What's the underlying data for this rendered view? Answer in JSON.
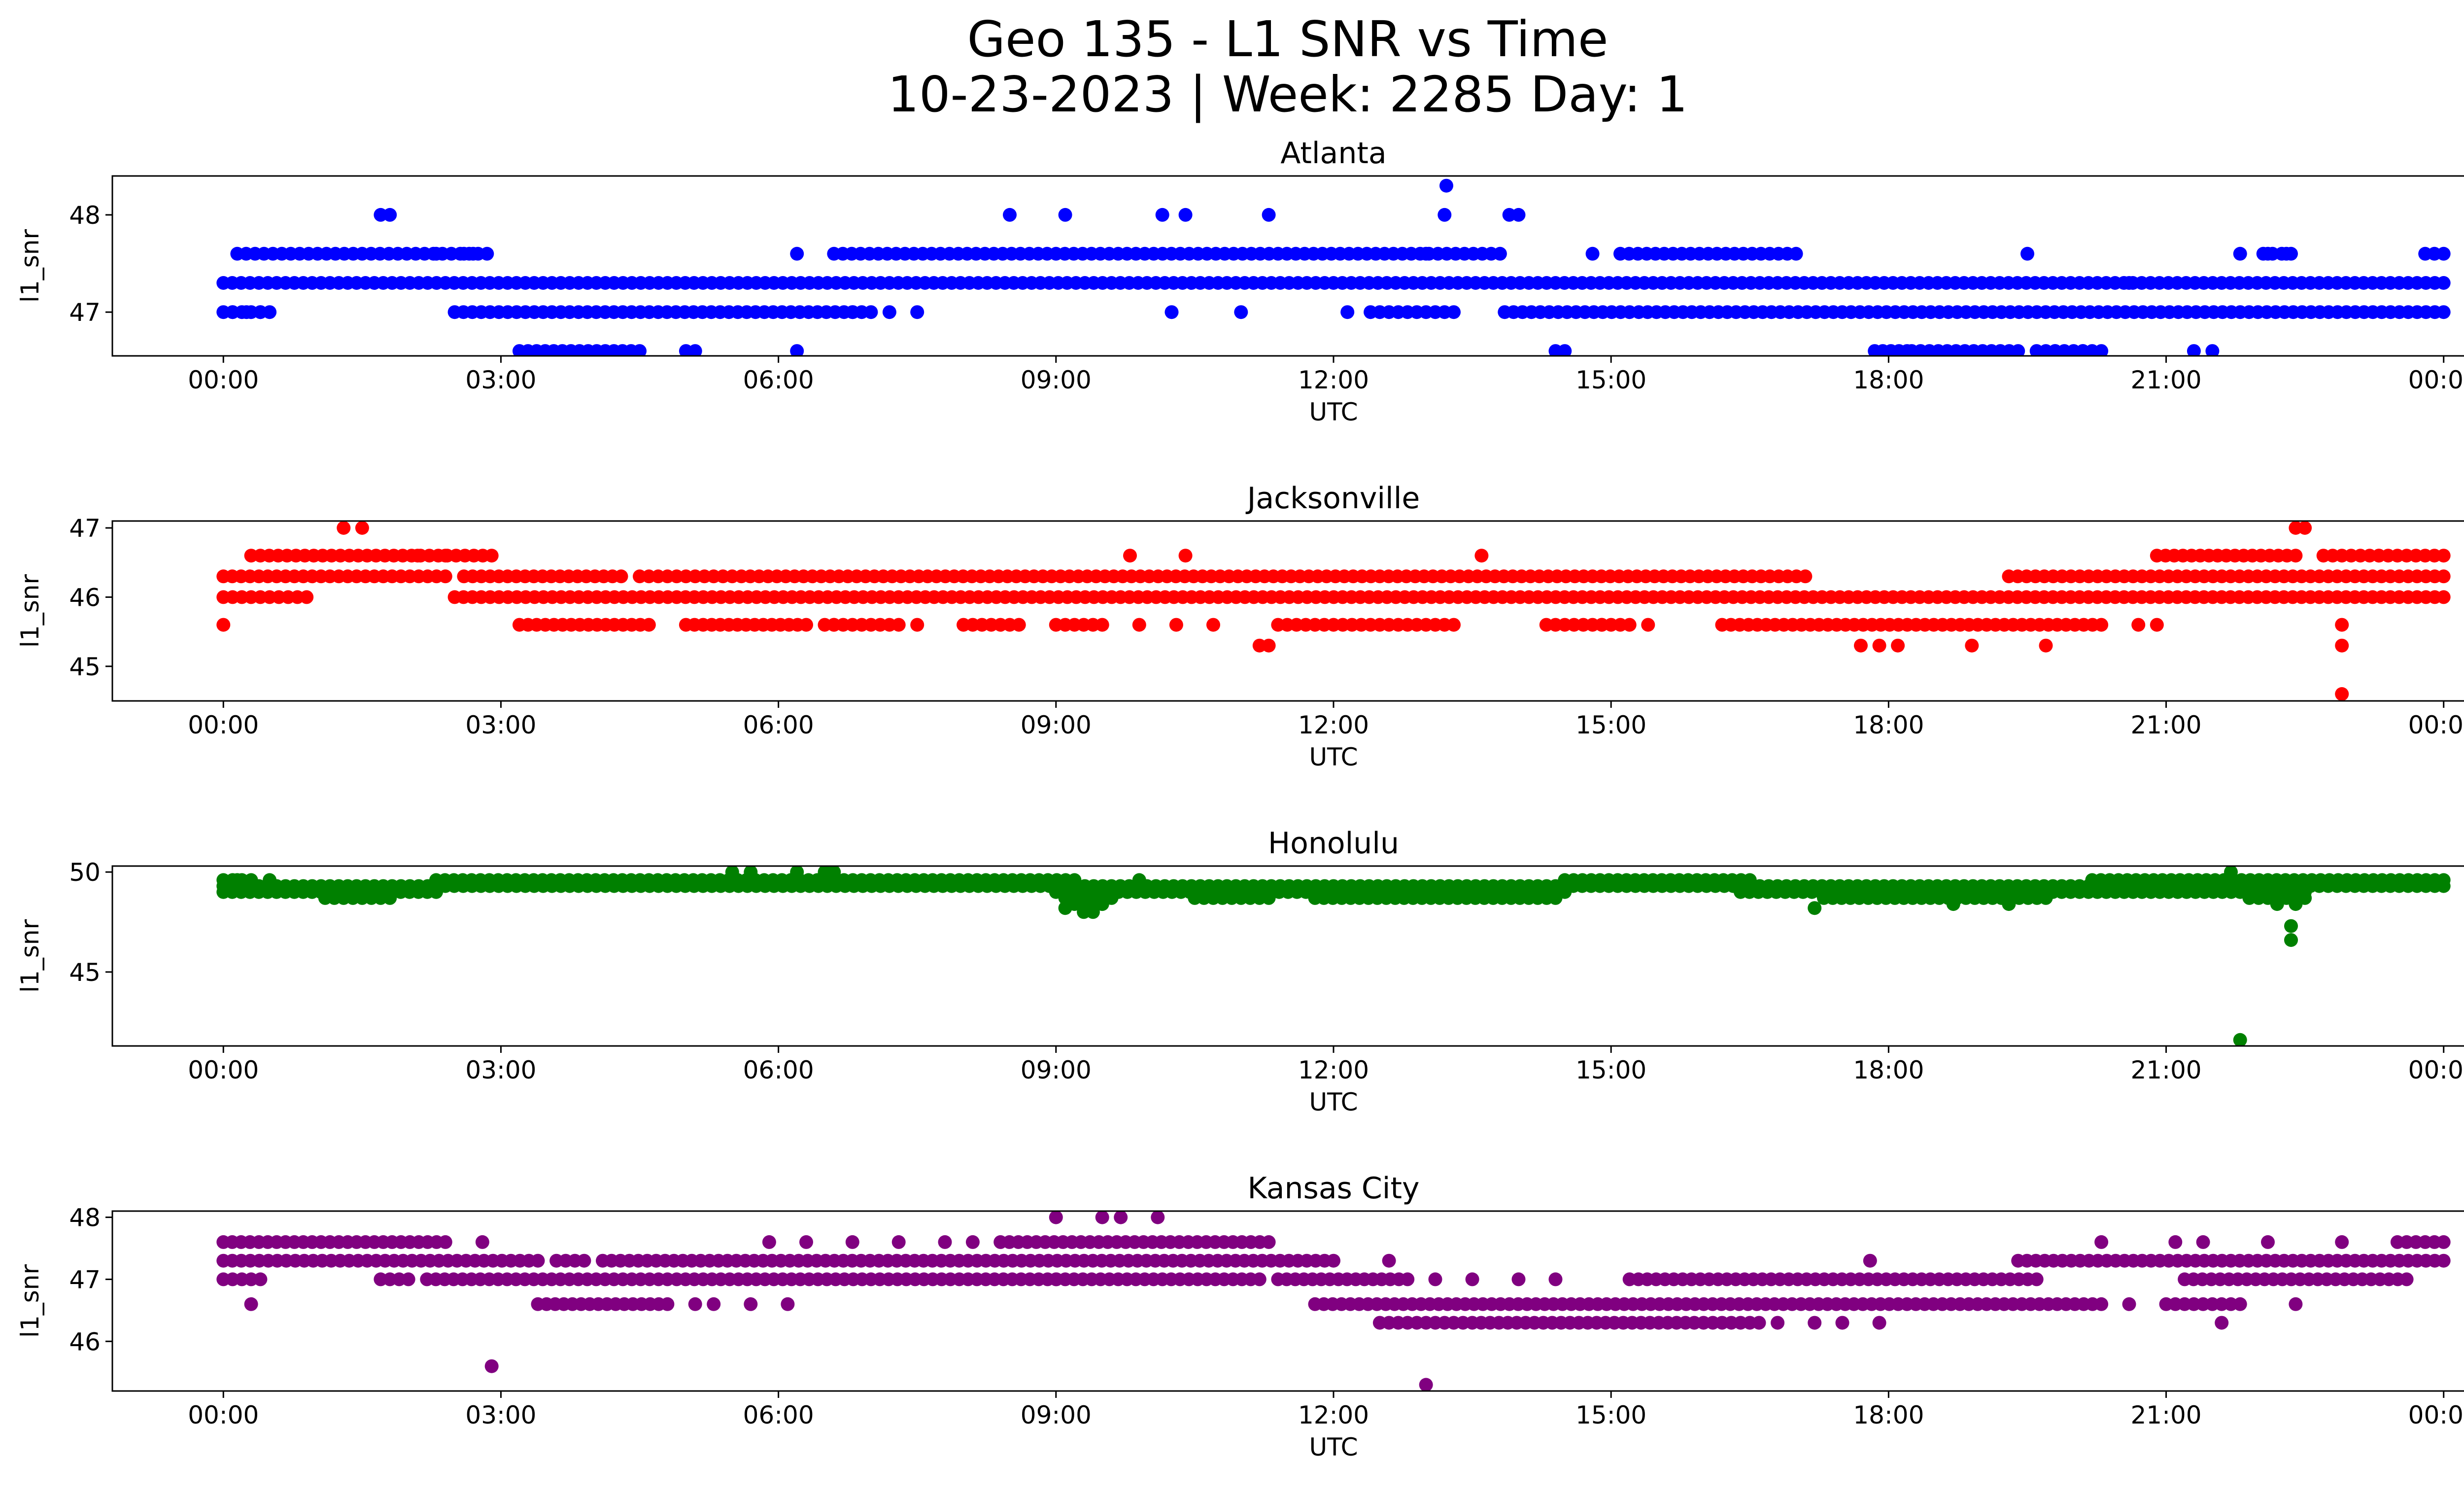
{
  "figure": {
    "title_line1": "Geo 135 - L1 SNR vs Time",
    "title_line2": "10-23-2023 | Week: 2285 Day: 1"
  },
  "chart_data": [
    {
      "type": "scatter",
      "title": "Atlanta",
      "xlabel": "UTC",
      "ylabel": "l1_snr",
      "color": "#0000ff",
      "x_unit": "hours UTC",
      "xlim": [
        -1.2,
        25.2
      ],
      "x_ticks": [
        0,
        3,
        6,
        9,
        12,
        15,
        18,
        21,
        24
      ],
      "x_tick_labels": [
        "00:00",
        "03:00",
        "06:00",
        "09:00",
        "12:00",
        "15:00",
        "18:00",
        "21:00",
        "00:00"
      ],
      "ylim": [
        46.55,
        48.4
      ],
      "y_ticks": [
        47,
        48
      ],
      "y_tick_labels": [
        "47",
        "48"
      ],
      "bands": [
        {
          "y": 47.3,
          "ranges": [
            [
              0.0,
              24.0
            ]
          ]
        },
        {
          "y": 47.0,
          "ranges": [
            [
              0.0,
              0.5
            ],
            [
              2.5,
              6.9
            ],
            [
              12.4,
              12.9
            ],
            [
              13.0,
              13.3
            ],
            [
              13.85,
              15.2
            ],
            [
              15.3,
              24.0
            ]
          ]
        },
        {
          "y": 47.6,
          "ranges": [
            [
              0.15,
              2.85
            ],
            [
              6.6,
              13.8
            ],
            [
              15.1,
              17.0
            ],
            [
              22.05,
              22.35
            ],
            [
              23.9,
              24.0
            ]
          ]
        },
        {
          "y": 46.6,
          "ranges": [
            [
              3.2,
              4.5
            ],
            [
              17.85,
              18.2
            ],
            [
              18.25,
              19.4
            ],
            [
              19.6,
              20.3
            ]
          ]
        }
      ],
      "points": [
        [
          0.1,
          47.0
        ],
        [
          0.25,
          47.0
        ],
        [
          0.4,
          47.0
        ],
        [
          1.7,
          48.0
        ],
        [
          1.8,
          48.0
        ],
        [
          2.3,
          47.6
        ],
        [
          2.6,
          47.6
        ],
        [
          2.7,
          47.6
        ],
        [
          6.2,
          47.6
        ],
        [
          6.2,
          46.6
        ],
        [
          6.8,
          47.0
        ],
        [
          7.0,
          47.0
        ],
        [
          7.2,
          47.0
        ],
        [
          7.5,
          47.0
        ],
        [
          8.5,
          48.0
        ],
        [
          9.1,
          48.0
        ],
        [
          10.15,
          48.0
        ],
        [
          10.25,
          47.0
        ],
        [
          10.4,
          48.0
        ],
        [
          11.0,
          47.0
        ],
        [
          11.3,
          48.0
        ],
        [
          12.15,
          47.0
        ],
        [
          13.0,
          47.6
        ],
        [
          13.2,
          48.0
        ],
        [
          13.22,
          48.3
        ],
        [
          13.9,
          48.0
        ],
        [
          14.0,
          48.0
        ],
        [
          14.4,
          46.6
        ],
        [
          14.5,
          46.6
        ],
        [
          14.8,
          47.6
        ],
        [
          5.0,
          46.6
        ],
        [
          5.1,
          46.6
        ],
        [
          19.5,
          47.6
        ],
        [
          19.8,
          46.6
        ],
        [
          20.1,
          46.6
        ],
        [
          20.6,
          47.3
        ],
        [
          21.3,
          46.6
        ],
        [
          21.5,
          46.6
        ],
        [
          21.8,
          47.6
        ],
        [
          22.1,
          47.6
        ],
        [
          22.3,
          47.6
        ],
        [
          23.8,
          47.6
        ]
      ]
    },
    {
      "type": "scatter",
      "title": "Jacksonville",
      "xlabel": "UTC",
      "ylabel": "l1_snr",
      "color": "#ff0000",
      "x_unit": "hours UTC",
      "xlim": [
        -1.2,
        25.2
      ],
      "x_ticks": [
        0,
        3,
        6,
        9,
        12,
        15,
        18,
        21,
        24
      ],
      "x_tick_labels": [
        "00:00",
        "03:00",
        "06:00",
        "09:00",
        "12:00",
        "15:00",
        "18:00",
        "21:00",
        "00:00"
      ],
      "ylim": [
        44.5,
        47.1
      ],
      "y_ticks": [
        45,
        46,
        47
      ],
      "y_tick_labels": [
        "45",
        "46",
        "47"
      ],
      "bands": [
        {
          "y": 46.3,
          "ranges": [
            [
              0.0,
              2.4
            ],
            [
              2.6,
              4.3
            ],
            [
              4.5,
              5.5
            ],
            [
              5.6,
              17.1
            ],
            [
              19.3,
              24.0
            ]
          ]
        },
        {
          "y": 46.0,
          "ranges": [
            [
              0.0,
              0.9
            ],
            [
              2.5,
              24.0
            ]
          ]
        },
        {
          "y": 46.6,
          "ranges": [
            [
              0.4,
              2.9
            ],
            [
              20.9,
              22.4
            ],
            [
              22.7,
              23.3
            ],
            [
              23.3,
              24.0
            ]
          ]
        },
        {
          "y": 45.6,
          "ranges": [
            [
              3.2,
              4.6
            ],
            [
              5.0,
              6.3
            ],
            [
              6.5,
              7.3
            ],
            [
              8.0,
              8.6
            ],
            [
              9.0,
              9.5
            ],
            [
              11.4,
              12.2
            ],
            [
              12.3,
              13.3
            ],
            [
              14.3,
              15.2
            ],
            [
              16.2,
              20.3
            ]
          ]
        }
      ],
      "points": [
        [
          0.0,
          45.6
        ],
        [
          0.3,
          46.6
        ],
        [
          1.3,
          47.0
        ],
        [
          1.5,
          47.0
        ],
        [
          2.1,
          46.6
        ],
        [
          2.4,
          46.6
        ],
        [
          6.6,
          45.6
        ],
        [
          7.5,
          45.6
        ],
        [
          9.8,
          46.6
        ],
        [
          9.9,
          45.6
        ],
        [
          10.3,
          45.6
        ],
        [
          10.4,
          46.6
        ],
        [
          10.7,
          45.6
        ],
        [
          11.2,
          45.3
        ],
        [
          11.3,
          45.3
        ],
        [
          13.6,
          46.6
        ],
        [
          14.9,
          45.6
        ],
        [
          15.4,
          45.6
        ],
        [
          17.7,
          45.3
        ],
        [
          17.9,
          45.3
        ],
        [
          18.1,
          45.3
        ],
        [
          18.9,
          45.3
        ],
        [
          19.7,
          45.3
        ],
        [
          20.7,
          45.6
        ],
        [
          20.9,
          45.6
        ],
        [
          22.4,
          47.0
        ],
        [
          22.5,
          47.0
        ],
        [
          22.9,
          45.6
        ],
        [
          22.9,
          45.3
        ],
        [
          22.9,
          44.6
        ]
      ]
    },
    {
      "type": "scatter",
      "title": "Honolulu",
      "xlabel": "UTC",
      "ylabel": "l1_snr",
      "color": "#008000",
      "x_unit": "hours UTC",
      "xlim": [
        -1.2,
        25.2
      ],
      "x_ticks": [
        0,
        3,
        6,
        9,
        12,
        15,
        18,
        21,
        24
      ],
      "x_tick_labels": [
        "00:00",
        "03:00",
        "06:00",
        "09:00",
        "12:00",
        "15:00",
        "18:00",
        "21:00",
        "00:00"
      ],
      "ylim": [
        41.3,
        50.3
      ],
      "y_ticks": [
        45,
        50
      ],
      "y_tick_labels": [
        "45",
        "50"
      ],
      "bands": [
        {
          "y": 49.6,
          "ranges": [
            [
              0.0,
              0.3
            ],
            [
              2.3,
              9.2
            ],
            [
              14.5,
              16.5
            ],
            [
              20.2,
              24.0
            ]
          ]
        },
        {
          "y": 49.3,
          "ranges": [
            [
              0.0,
              24.0
            ]
          ]
        },
        {
          "y": 49.0,
          "ranges": [
            [
              0.0,
              2.3
            ],
            [
              9.0,
              14.5
            ],
            [
              16.4,
              21.8
            ],
            [
              21.9,
              22.5
            ]
          ]
        },
        {
          "y": 48.7,
          "ranges": [
            [
              1.1,
              1.8
            ],
            [
              9.1,
              9.6
            ],
            [
              10.5,
              11.3
            ],
            [
              11.8,
              14.4
            ],
            [
              17.3,
              19.7
            ],
            [
              21.9,
              22.5
            ]
          ]
        },
        {
          "y": 48.4,
          "ranges": [
            [
              9.2,
              9.5
            ]
          ]
        }
      ],
      "points": [
        [
          0.15,
          49.6
        ],
        [
          0.5,
          49.6
        ],
        [
          5.5,
          50.0
        ],
        [
          5.7,
          50.0
        ],
        [
          6.2,
          50.0
        ],
        [
          6.5,
          50.0
        ],
        [
          6.6,
          50.0
        ],
        [
          9.1,
          48.2
        ],
        [
          9.3,
          48.0
        ],
        [
          9.4,
          48.0
        ],
        [
          9.5,
          48.4
        ],
        [
          9.9,
          49.6
        ],
        [
          17.2,
          48.2
        ],
        [
          18.7,
          48.4
        ],
        [
          19.3,
          48.4
        ],
        [
          21.7,
          50.0
        ],
        [
          22.2,
          48.4
        ],
        [
          22.4,
          48.4
        ],
        [
          22.35,
          47.3
        ],
        [
          22.35,
          46.6
        ],
        [
          21.8,
          41.6
        ]
      ]
    },
    {
      "type": "scatter",
      "title": "Kansas City",
      "xlabel": "UTC",
      "ylabel": "l1_snr",
      "color": "#800080",
      "x_unit": "hours UTC",
      "xlim": [
        -1.2,
        25.2
      ],
      "x_ticks": [
        0,
        3,
        6,
        9,
        12,
        15,
        18,
        21,
        24
      ],
      "x_tick_labels": [
        "00:00",
        "03:00",
        "06:00",
        "09:00",
        "12:00",
        "15:00",
        "18:00",
        "21:00",
        "00:00"
      ],
      "ylim": [
        45.2,
        48.1
      ],
      "y_ticks": [
        46,
        47,
        48
      ],
      "y_tick_labels": [
        "46",
        "47",
        "48"
      ],
      "bands": [
        {
          "y": 47.3,
          "ranges": [
            [
              0.0,
              3.4
            ],
            [
              3.6,
              3.9
            ],
            [
              4.1,
              12.0
            ],
            [
              19.4,
              24.0
            ]
          ]
        },
        {
          "y": 47.0,
          "ranges": [
            [
              0.0,
              0.4
            ],
            [
              1.7,
              2.0
            ],
            [
              2.2,
              4.8
            ],
            [
              4.9,
              11.2
            ],
            [
              11.4,
              12.8
            ],
            [
              15.2,
              19.6
            ],
            [
              21.2,
              23.6
            ]
          ]
        },
        {
          "y": 47.6,
          "ranges": [
            [
              0.0,
              2.4
            ],
            [
              8.4,
              11.3
            ],
            [
              23.5,
              24.0
            ]
          ]
        },
        {
          "y": 46.6,
          "ranges": [
            [
              3.4,
              4.8
            ],
            [
              11.8,
              20.3
            ],
            [
              21.0,
              21.8
            ]
          ]
        },
        {
          "y": 46.3,
          "ranges": [
            [
              12.5,
              13.4
            ],
            [
              13.5,
              15.9
            ],
            [
              16.0,
              16.6
            ]
          ]
        }
      ],
      "points": [
        [
          0.3,
          46.6
        ],
        [
          2.8,
          47.6
        ],
        [
          2.9,
          45.6
        ],
        [
          5.1,
          46.6
        ],
        [
          5.3,
          46.6
        ],
        [
          5.7,
          46.6
        ],
        [
          6.1,
          46.6
        ],
        [
          5.9,
          47.6
        ],
        [
          6.3,
          47.6
        ],
        [
          6.8,
          47.6
        ],
        [
          7.3,
          47.6
        ],
        [
          7.8,
          47.6
        ],
        [
          8.1,
          47.6
        ],
        [
          9.0,
          48.0
        ],
        [
          9.0,
          47.0
        ],
        [
          9.5,
          48.0
        ],
        [
          9.7,
          48.0
        ],
        [
          10.1,
          48.0
        ],
        [
          12.6,
          47.3
        ],
        [
          13.1,
          47.0
        ],
        [
          13.5,
          47.0
        ],
        [
          14.0,
          47.0
        ],
        [
          14.4,
          47.0
        ],
        [
          13.0,
          45.3
        ],
        [
          16.8,
          46.3
        ],
        [
          17.2,
          46.3
        ],
        [
          17.5,
          46.3
        ],
        [
          17.8,
          47.3
        ],
        [
          17.9,
          46.3
        ],
        [
          20.3,
          47.6
        ],
        [
          20.6,
          46.6
        ],
        [
          21.1,
          47.6
        ],
        [
          21.4,
          47.6
        ],
        [
          21.6,
          46.3
        ],
        [
          22.1,
          47.6
        ],
        [
          22.4,
          46.6
        ],
        [
          22.9,
          47.6
        ]
      ]
    }
  ]
}
